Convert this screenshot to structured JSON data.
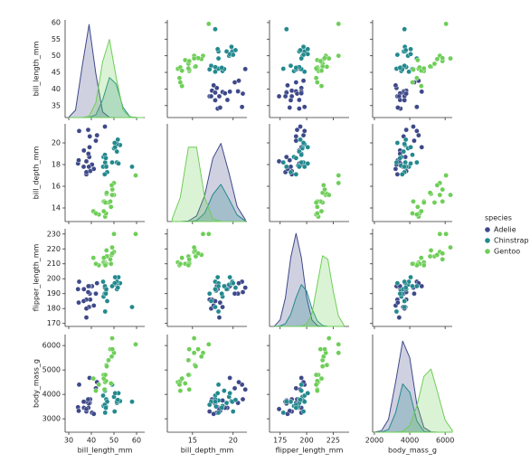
{
  "chart_data": {
    "type": "pairplot",
    "legend_title": "species",
    "density_ylim": [
      0,
      1.05
    ],
    "variables": [
      {
        "label": "bill_length_mm",
        "xlim": [
          28.4,
          63.6
        ],
        "ylim": [
          31.4,
          60.8
        ],
        "xticks": [
          30,
          40,
          50,
          60
        ],
        "yticks": [
          35,
          40,
          45,
          50,
          55,
          60
        ],
        "kde_x": [
          30,
          33,
          36,
          39,
          42,
          45,
          48,
          51,
          54,
          57,
          60,
          63
        ]
      },
      {
        "label": "bill_depth_mm",
        "xlim": [
          11.9,
          21.7
        ],
        "ylim": [
          12.75,
          21.75
        ],
        "xticks": [
          15,
          20
        ],
        "yticks": [
          14,
          16,
          18,
          20
        ],
        "kde_x": [
          12.5,
          13.5,
          14.5,
          15.5,
          16.5,
          17.5,
          18.5,
          19.5,
          20.5,
          21.5
        ]
      },
      {
        "label": "flipper_length_mm",
        "xlim": [
          165,
          240
        ],
        "ylim": [
          168,
          233.5
        ],
        "xticks": [
          175,
          200,
          225
        ],
        "yticks": [
          170,
          180,
          190,
          200,
          210,
          220,
          230
        ],
        "kde_x": [
          170,
          175,
          180,
          185,
          190,
          195,
          200,
          205,
          210,
          215,
          220,
          225,
          230,
          235
        ]
      },
      {
        "label": "body_mass_g",
        "xlim": [
          1900,
          6400
        ],
        "ylim": [
          2450,
          6450
        ],
        "xticks": [
          2000,
          4000,
          6000
        ],
        "yticks": [
          3000,
          4000,
          5000,
          6000
        ],
        "kde_x": [
          2000,
          2400,
          2800,
          3200,
          3600,
          4000,
          4400,
          4800,
          5200,
          5600,
          6000,
          6400
        ]
      }
    ],
    "series": [
      {
        "name": "Adelie",
        "color": "#3e4989",
        "values": [
          [
            39.1,
            39.5,
            40.3,
            36.7,
            39.3,
            38.9,
            39.2,
            34.1,
            42.0,
            37.8,
            37.8,
            41.1,
            38.6,
            34.6,
            36.6,
            38.7,
            42.5,
            34.4,
            46.0,
            37.8
          ],
          [
            18.7,
            17.4,
            18.0,
            19.3,
            20.6,
            17.8,
            19.6,
            18.1,
            20.2,
            17.1,
            17.3,
            17.6,
            21.2,
            21.1,
            17.8,
            19.0,
            20.7,
            18.4,
            21.5,
            18.3
          ],
          [
            181,
            186,
            195,
            193,
            190,
            181,
            195,
            193,
            190,
            186,
            180,
            182,
            191,
            198,
            185,
            195,
            197,
            184,
            194,
            174
          ],
          [
            3750,
            3800,
            3250,
            3450,
            3650,
            3625,
            4675,
            3475,
            4250,
            3300,
            3700,
            3200,
            3800,
            4400,
            3700,
            3450,
            4500,
            3325,
            4200,
            3400
          ]
        ],
        "density": [
          [
            0.003,
            0.08,
            0.56,
            1.0,
            0.47,
            0.06,
            0.002,
            0,
            0,
            0,
            0,
            0
          ],
          [
            0,
            0,
            0.006,
            0.06,
            0.28,
            0.68,
            0.84,
            0.52,
            0.16,
            0.02
          ],
          [
            0.009,
            0.07,
            0.31,
            0.74,
            1,
            0.74,
            0.31,
            0.07,
            0.009,
            0,
            0,
            0,
            0,
            0
          ],
          [
            0.001,
            0.015,
            0.14,
            0.54,
            0.98,
            0.8,
            0.3,
            0.05,
            0.004,
            0,
            0,
            0
          ]
        ]
      },
      {
        "name": "Chinstrap",
        "color": "#23898e",
        "values": [
          [
            46.5,
            50.0,
            51.3,
            45.4,
            52.7,
            45.2,
            46.1,
            51.3,
            46.0,
            51.3,
            46.6,
            51.7,
            47.0,
            52.0,
            45.9,
            50.5,
            50.3,
            58.0,
            46.4,
            49.2
          ],
          [
            17.9,
            19.5,
            19.2,
            18.7,
            19.8,
            17.8,
            18.2,
            18.2,
            18.9,
            19.9,
            17.8,
            20.3,
            17.3,
            18.1,
            17.1,
            19.6,
            20.0,
            17.8,
            18.6,
            18.2
          ],
          [
            192,
            196,
            193,
            188,
            197,
            198,
            178,
            197,
            195,
            198,
            193,
            194,
            185,
            201,
            190,
            201,
            197,
            181,
            190,
            195
          ],
          [
            3500,
            3900,
            3650,
            3525,
            3725,
            3950,
            3250,
            3750,
            4150,
            3700,
            3800,
            3775,
            3700,
            4050,
            3575,
            4050,
            3300,
            3700,
            3450,
            4400
          ]
        ],
        "density": [
          [
            0,
            0,
            0,
            0.002,
            0.03,
            0.19,
            0.43,
            0.36,
            0.11,
            0.01,
            0,
            0
          ],
          [
            0,
            0,
            0,
            0.01,
            0.09,
            0.29,
            0.4,
            0.24,
            0.07,
            0.008
          ],
          [
            0,
            0.005,
            0.03,
            0.13,
            0.31,
            0.45,
            0.38,
            0.19,
            0.06,
            0.01,
            0.001,
            0,
            0,
            0
          ],
          [
            0,
            0,
            0.03,
            0.21,
            0.52,
            0.43,
            0.12,
            0.01,
            0,
            0,
            0,
            0
          ]
        ]
      },
      {
        "name": "Gentoo",
        "color": "#6ece58",
        "values": [
          [
            46.1,
            50.0,
            48.7,
            50.0,
            47.6,
            46.5,
            45.4,
            46.7,
            43.3,
            46.8,
            40.9,
            49.0,
            45.5,
            48.4,
            45.8,
            49.3,
            42.0,
            49.2,
            46.2,
            59.6
          ],
          [
            13.2,
            16.3,
            14.1,
            15.2,
            14.5,
            13.5,
            14.6,
            15.3,
            13.4,
            15.4,
            13.7,
            16.1,
            13.7,
            14.6,
            14.6,
            15.7,
            13.5,
            15.2,
            14.5,
            17.0
          ],
          [
            211,
            230,
            210,
            218,
            215,
            210,
            211,
            219,
            209,
            215,
            214,
            216,
            214,
            213,
            210,
            217,
            210,
            221,
            209,
            230
          ],
          [
            4500,
            5700,
            4450,
            5700,
            5400,
            4550,
            4800,
            5200,
            4400,
            5150,
            4650,
            5550,
            4650,
            5850,
            4200,
            5850,
            4150,
            6300,
            4800,
            6050
          ]
        ],
        "density": [
          [
            0,
            0,
            0,
            0.015,
            0.16,
            0.6,
            0.84,
            0.43,
            0.08,
            0.006,
            0.001,
            0
          ],
          [
            0.03,
            0.26,
            0.8,
            0.8,
            0.26,
            0.03,
            0.001,
            0,
            0,
            0
          ],
          [
            0,
            0,
            0,
            0,
            0,
            0.003,
            0.025,
            0.14,
            0.45,
            0.76,
            0.72,
            0.38,
            0.11,
            0.017
          ],
          [
            0,
            0,
            0,
            0,
            0.009,
            0.07,
            0.28,
            0.6,
            0.68,
            0.41,
            0.13,
            0.02
          ]
        ]
      }
    ]
  }
}
